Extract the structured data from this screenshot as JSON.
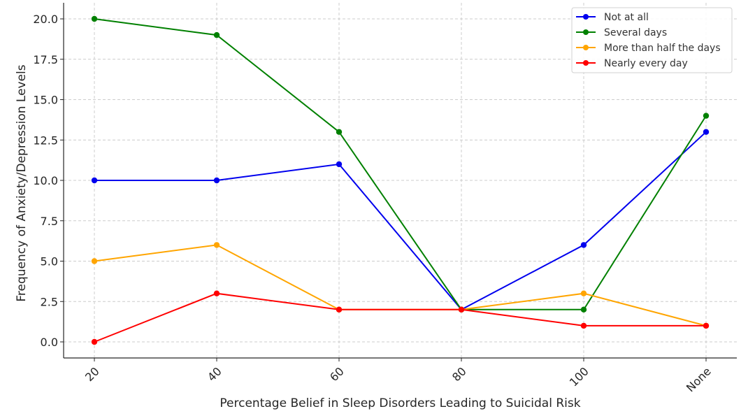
{
  "chart_data": {
    "type": "line",
    "categories": [
      "20",
      "40",
      "60",
      "80",
      "100",
      "None"
    ],
    "xlabel": "Percentage Belief in Sleep Disorders Leading to Suicidal Risk",
    "ylabel": "Frequency of Anxiety/Depression Levels",
    "ylim": [
      -1,
      21
    ],
    "yticks": [
      "0.0",
      "2.5",
      "5.0",
      "7.5",
      "10.0",
      "12.5",
      "15.0",
      "17.5",
      "20.0"
    ],
    "grid": true,
    "legend_position": "top-right",
    "series": [
      {
        "name": "Not at all",
        "color": "#0000ee",
        "values": [
          10,
          10,
          11,
          2,
          6,
          13
        ]
      },
      {
        "name": "Several days",
        "color": "#008000",
        "values": [
          20,
          19,
          13,
          2,
          2,
          14
        ]
      },
      {
        "name": "More than half the days",
        "color": "#ffa500",
        "values": [
          5,
          6,
          2,
          2,
          3,
          1
        ]
      },
      {
        "name": "Nearly every day",
        "color": "#ff0000",
        "values": [
          0,
          3,
          2,
          2,
          1,
          1
        ]
      }
    ]
  }
}
